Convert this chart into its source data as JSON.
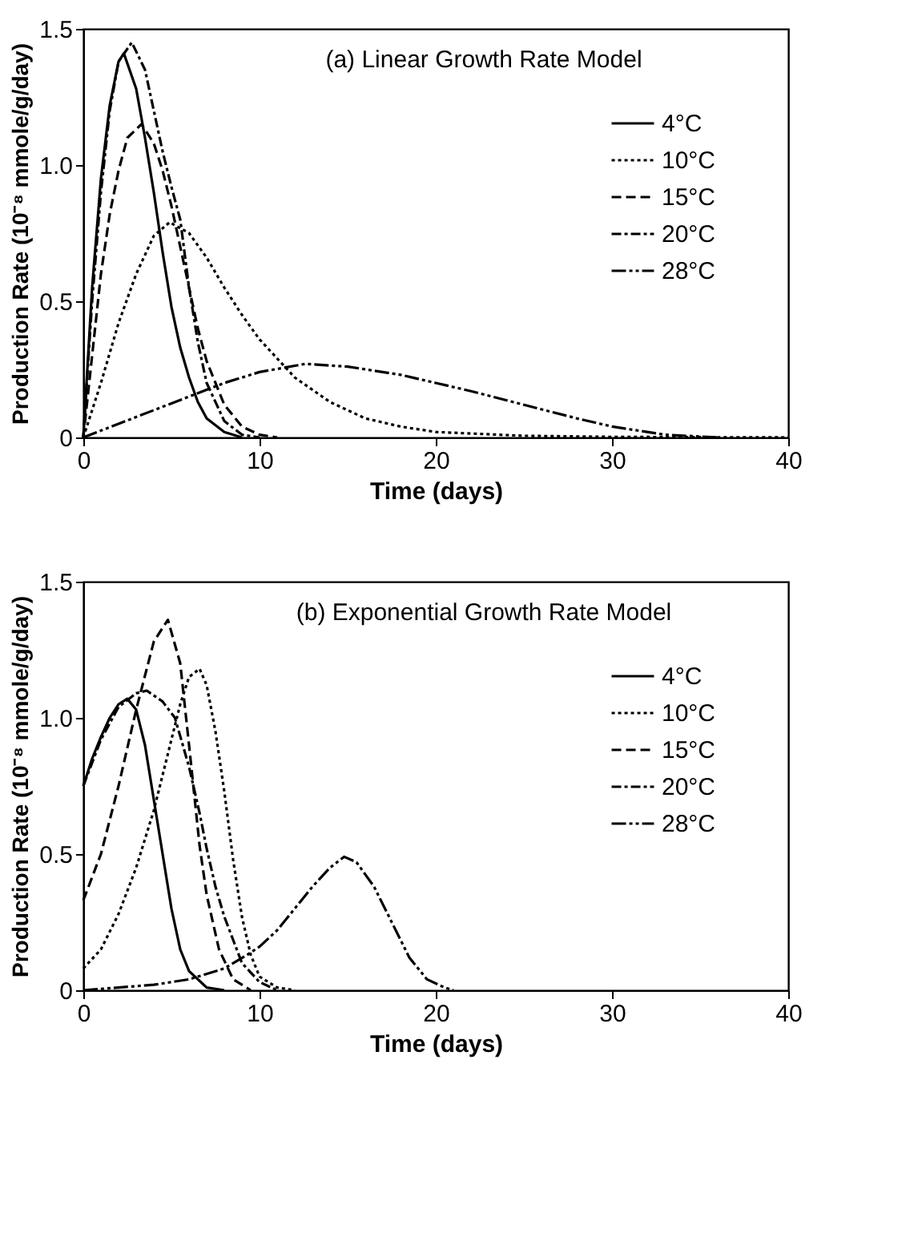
{
  "chart_data": [
    {
      "type": "line",
      "title": "(a) Linear Growth Rate Model",
      "xlabel": "Time (days)",
      "ylabel": "Production Rate (10⁻⁸ mmole/g/day)",
      "xlim": [
        0,
        40
      ],
      "xticks": [
        0,
        10,
        20,
        30,
        40
      ],
      "ylim": [
        0,
        1.5
      ],
      "yticks": [
        0,
        0.5,
        {
          "value": 1,
          "label": "1.0"
        },
        1.5
      ],
      "grid": false,
      "legend": "top right",
      "marker": "none",
      "series": [
        {
          "name": "4°C",
          "color": "#000000",
          "line_style": "solid",
          "x": [
            0,
            0.5,
            1,
            1.5,
            2,
            2.3,
            3,
            3.5,
            4,
            4.5,
            5,
            5.5,
            6,
            6.5,
            7,
            8,
            9
          ],
          "values": [
            0,
            0.55,
            0.95,
            1.22,
            1.38,
            1.41,
            1.28,
            1.1,
            0.9,
            0.68,
            0.48,
            0.33,
            0.22,
            0.13,
            0.07,
            0.02,
            0
          ]
        },
        {
          "name": "10°C",
          "color": "#000000",
          "line_style": "dotted",
          "x": [
            0,
            1,
            2,
            3,
            4,
            4.9,
            6,
            7,
            8,
            9,
            10,
            12,
            14,
            16,
            18,
            20,
            25,
            30,
            35,
            40
          ],
          "values": [
            0,
            0.2,
            0.42,
            0.6,
            0.74,
            0.79,
            0.75,
            0.66,
            0.55,
            0.45,
            0.36,
            0.22,
            0.13,
            0.07,
            0.04,
            0.02,
            0.006,
            0.002,
            0.001,
            0
          ]
        },
        {
          "name": "15°C",
          "color": "#000000",
          "line_style": "dashed",
          "x": [
            0,
            0.5,
            1,
            1.5,
            2,
            2.5,
            3.3,
            4,
            4.5,
            5,
            5.5,
            6,
            6.5,
            7,
            8,
            9,
            10,
            11
          ],
          "values": [
            0,
            0.3,
            0.6,
            0.82,
            0.98,
            1.1,
            1.15,
            1.08,
            0.98,
            0.85,
            0.7,
            0.55,
            0.4,
            0.28,
            0.12,
            0.04,
            0.01,
            0
          ]
        },
        {
          "name": "20°C",
          "color": "#000000",
          "line_style": "dashdot",
          "x": [
            0,
            0.5,
            1,
            1.5,
            2,
            2.75,
            3.5,
            4,
            4.5,
            5,
            5.5,
            6,
            6.5,
            7,
            8,
            9,
            10
          ],
          "values": [
            0,
            0.5,
            0.9,
            1.2,
            1.38,
            1.45,
            1.35,
            1.2,
            1.05,
            0.92,
            0.8,
            0.55,
            0.35,
            0.2,
            0.06,
            0.01,
            0
          ]
        },
        {
          "name": "28°C",
          "color": "#000000",
          "line_style": "dashdotdot",
          "x": [
            0,
            2,
            4,
            6,
            8,
            10,
            12.6,
            15,
            18,
            20,
            22,
            25,
            28,
            30,
            33,
            36
          ],
          "values": [
            0,
            0.05,
            0.1,
            0.15,
            0.2,
            0.24,
            0.27,
            0.26,
            0.23,
            0.2,
            0.17,
            0.12,
            0.07,
            0.04,
            0.01,
            0
          ]
        }
      ]
    },
    {
      "type": "line",
      "title": "(b) Exponential Growth Rate Model",
      "xlabel": "Time (days)",
      "ylabel": "Production Rate (10⁻⁸ mmole/g/day)",
      "xlim": [
        0,
        40
      ],
      "xticks": [
        0,
        10,
        20,
        30,
        40
      ],
      "ylim": [
        0,
        1.5
      ],
      "yticks": [
        0,
        0.5,
        {
          "value": 1,
          "label": "1.0"
        },
        1.5
      ],
      "grid": false,
      "legend": "top right",
      "marker": "none",
      "series": [
        {
          "name": "4°C",
          "color": "#000000",
          "line_style": "solid",
          "x": [
            0,
            0.5,
            1,
            1.5,
            2,
            2.5,
            3,
            3.5,
            4,
            4.5,
            5,
            5.5,
            6,
            7,
            8
          ],
          "values": [
            0.75,
            0.85,
            0.93,
            1.0,
            1.05,
            1.07,
            1.03,
            0.9,
            0.7,
            0.5,
            0.3,
            0.15,
            0.07,
            0.01,
            0
          ]
        },
        {
          "name": "10°C",
          "color": "#000000",
          "line_style": "dotted",
          "x": [
            0,
            1,
            2,
            3,
            4,
            5,
            5.5,
            6,
            6.6,
            7,
            7.5,
            8,
            8.5,
            9,
            9.5,
            10,
            11,
            12
          ],
          "values": [
            0.08,
            0.15,
            0.28,
            0.45,
            0.66,
            0.92,
            1.05,
            1.15,
            1.18,
            1.12,
            0.95,
            0.73,
            0.48,
            0.27,
            0.13,
            0.05,
            0.01,
            0
          ]
        },
        {
          "name": "15°C",
          "color": "#000000",
          "line_style": "dashed",
          "x": [
            0,
            1,
            2,
            3,
            4,
            4.8,
            5.5,
            6,
            6.6,
            7,
            7.7,
            8.5,
            9.5
          ],
          "values": [
            0.33,
            0.5,
            0.75,
            1.03,
            1.28,
            1.36,
            1.2,
            0.9,
            0.53,
            0.35,
            0.15,
            0.04,
            0
          ]
        },
        {
          "name": "20°C",
          "color": "#000000",
          "line_style": "dashdot",
          "x": [
            0,
            1,
            2,
            3,
            3.6,
            4.5,
            5.2,
            6,
            6.6,
            7,
            7.5,
            8,
            9,
            10,
            11
          ],
          "values": [
            0.75,
            0.92,
            1.04,
            1.09,
            1.1,
            1.06,
            1.0,
            0.82,
            0.65,
            0.52,
            0.38,
            0.27,
            0.1,
            0.03,
            0
          ]
        },
        {
          "name": "28°C",
          "color": "#000000",
          "line_style": "dashdotdot",
          "x": [
            0,
            2,
            4,
            6,
            8,
            9.3,
            10,
            11,
            12,
            13,
            14,
            14.8,
            15.5,
            16.5,
            17.5,
            18.5,
            19.5,
            20.5,
            21
          ],
          "values": [
            0,
            0.01,
            0.02,
            0.04,
            0.08,
            0.13,
            0.16,
            0.22,
            0.3,
            0.38,
            0.45,
            0.49,
            0.47,
            0.38,
            0.25,
            0.12,
            0.04,
            0.01,
            0
          ]
        }
      ]
    }
  ]
}
